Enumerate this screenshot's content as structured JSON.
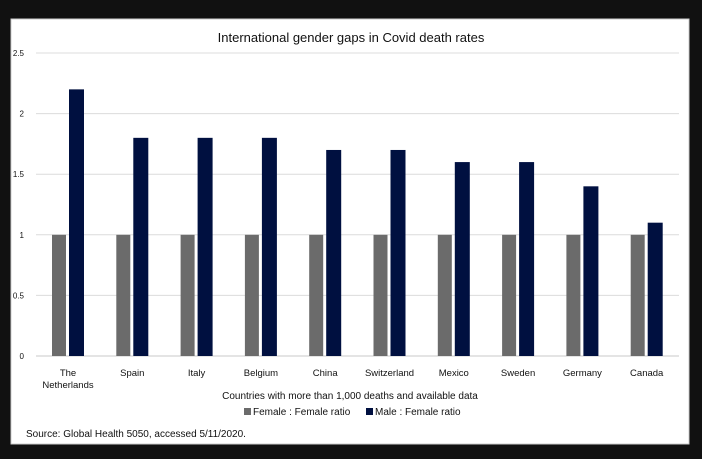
{
  "chart_data": {
    "type": "bar",
    "title": "International gender gaps in Covid death rates",
    "xlabel": "Countries  with more than 1,000 deaths and available data",
    "ylabel": "",
    "ylim": [
      0,
      2.5
    ],
    "yticks": [
      "0",
      "0.5",
      "1",
      "1.5",
      "2",
      "2.5"
    ],
    "grid": true,
    "legend_placement": "bottom",
    "categories": [
      [
        "The",
        "Netherlands"
      ],
      [
        "Spain"
      ],
      [
        "Italy"
      ],
      [
        "Belgium"
      ],
      [
        "China"
      ],
      [
        "Switzerland"
      ],
      [
        "Mexico"
      ],
      [
        "Sweden"
      ],
      [
        "Germany"
      ],
      [
        "Canada"
      ]
    ],
    "series": [
      {
        "name": "Female : Female ratio",
        "color": "#6b6b6b",
        "values": [
          1,
          1,
          1,
          1,
          1,
          1,
          1,
          1,
          1,
          1
        ]
      },
      {
        "name": "Male : Female ratio",
        "color": "#001040",
        "values": [
          2.2,
          1.8,
          1.8,
          1.8,
          1.7,
          1.7,
          1.6,
          1.6,
          1.4,
          1.1
        ]
      }
    ],
    "source": "Source: Global Health 5050,  accessed 5/11/2020."
  }
}
